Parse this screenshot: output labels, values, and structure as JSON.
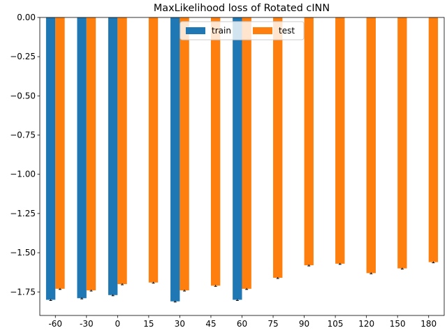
{
  "chart_data": {
    "type": "bar",
    "title": "MaxLikelihood loss of Rotated cINN",
    "xlabel": "",
    "ylabel": "",
    "categories": [
      "-60",
      "-30",
      "0",
      "15",
      "30",
      "45",
      "60",
      "75",
      "90",
      "105",
      "120",
      "150",
      "180"
    ],
    "series": [
      {
        "name": "train",
        "color": "#1f77b4",
        "values": [
          -1.8,
          -1.79,
          -1.77,
          null,
          -1.81,
          null,
          -1.8,
          null,
          null,
          null,
          null,
          null,
          null
        ]
      },
      {
        "name": "test",
        "color": "#ff7f0e",
        "values": [
          -1.73,
          -1.74,
          -1.7,
          -1.69,
          -1.74,
          -1.71,
          -1.73,
          -1.66,
          -1.58,
          -1.57,
          -1.63,
          -1.6,
          -1.56
        ]
      }
    ],
    "ylim": [
      -1.9,
      0.0
    ],
    "yticks": [
      "0.00",
      "−0.25",
      "−0.50",
      "−0.75",
      "−1.00",
      "−1.25",
      "−1.50",
      "−1.75"
    ],
    "ytick_values": [
      0.0,
      -0.25,
      -0.5,
      -0.75,
      -1.0,
      -1.25,
      -1.5,
      -1.75
    ],
    "error_bars": true,
    "grid": false,
    "legend": {
      "placement": "upper-center",
      "columns": 2
    }
  }
}
